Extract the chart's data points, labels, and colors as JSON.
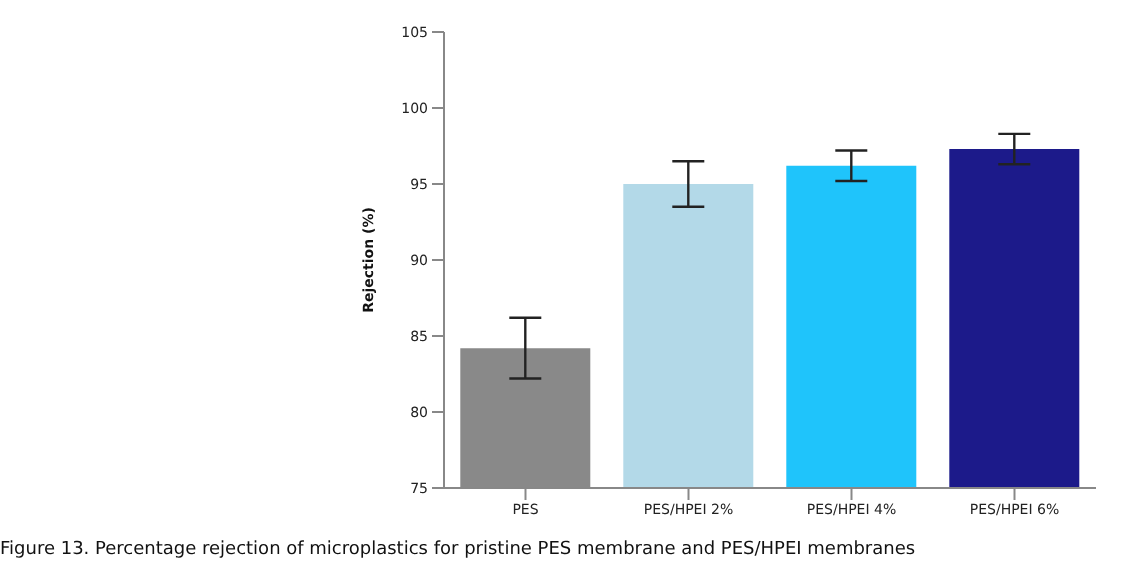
{
  "chart_data": {
    "type": "bar",
    "ylabel": "Rejection (%)",
    "categories": [
      "PES",
      "PES/HPEI 2%",
      "PES/HPEI 4%",
      "PES/HPEI 6%"
    ],
    "values": [
      84.2,
      95.0,
      96.2,
      97.3
    ],
    "errors": [
      2.0,
      1.5,
      1.0,
      1.0
    ],
    "colors": [
      "#898989",
      "#b3d9e8",
      "#1fc4fb",
      "#1c1a8a"
    ],
    "ylim": [
      75,
      105
    ],
    "yticks": [
      75,
      80,
      85,
      90,
      95,
      100,
      105
    ],
    "grid": false,
    "annotations": [
      "Figure 13. Percentage rejection of microplastics for pristine PES membrane and PES/HPEI membranes"
    ]
  }
}
